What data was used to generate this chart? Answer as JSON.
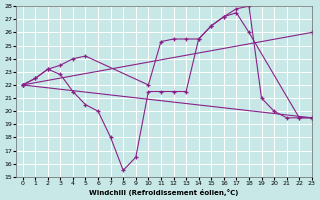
{
  "background_color": "#c8e8e8",
  "line_color": "#882288",
  "xlim": [
    -0.5,
    23
  ],
  "ylim": [
    15,
    28
  ],
  "yticks": [
    15,
    16,
    17,
    18,
    19,
    20,
    21,
    22,
    23,
    24,
    25,
    26,
    27,
    28
  ],
  "xticks": [
    0,
    1,
    2,
    3,
    4,
    5,
    6,
    7,
    8,
    9,
    10,
    11,
    12,
    13,
    14,
    15,
    16,
    17,
    18,
    19,
    20,
    21,
    22,
    23
  ],
  "xlabel": "Windchill (Refroidissement éolien,°C)",
  "lines": [
    {
      "x": [
        0,
        1,
        2,
        3,
        4,
        5,
        6,
        7,
        8,
        9,
        10,
        11,
        12,
        13,
        14,
        15,
        16,
        17,
        18,
        19,
        20,
        21,
        22,
        23
      ],
      "y": [
        22,
        22.5,
        23.2,
        22.8,
        21.5,
        20.5,
        20,
        18,
        15.5,
        16.5,
        21.5,
        21.5,
        21.5,
        21.5,
        25.5,
        26.5,
        27.2,
        27.8,
        28,
        21,
        20,
        19.5,
        19.5,
        19.5
      ]
    },
    {
      "x": [
        0,
        1,
        2,
        3,
        4,
        5,
        10,
        11,
        12,
        13,
        14,
        15,
        16,
        17,
        18,
        22,
        23
      ],
      "y": [
        22,
        22.5,
        23.2,
        23.5,
        24,
        24.2,
        22,
        25.3,
        25.5,
        25.5,
        25.5,
        26.5,
        27.2,
        27.5,
        26,
        19.5,
        19.5
      ]
    },
    {
      "x": [
        0,
        23
      ],
      "y": [
        22,
        26
      ]
    },
    {
      "x": [
        0,
        23
      ],
      "y": [
        22,
        19.5
      ]
    }
  ]
}
